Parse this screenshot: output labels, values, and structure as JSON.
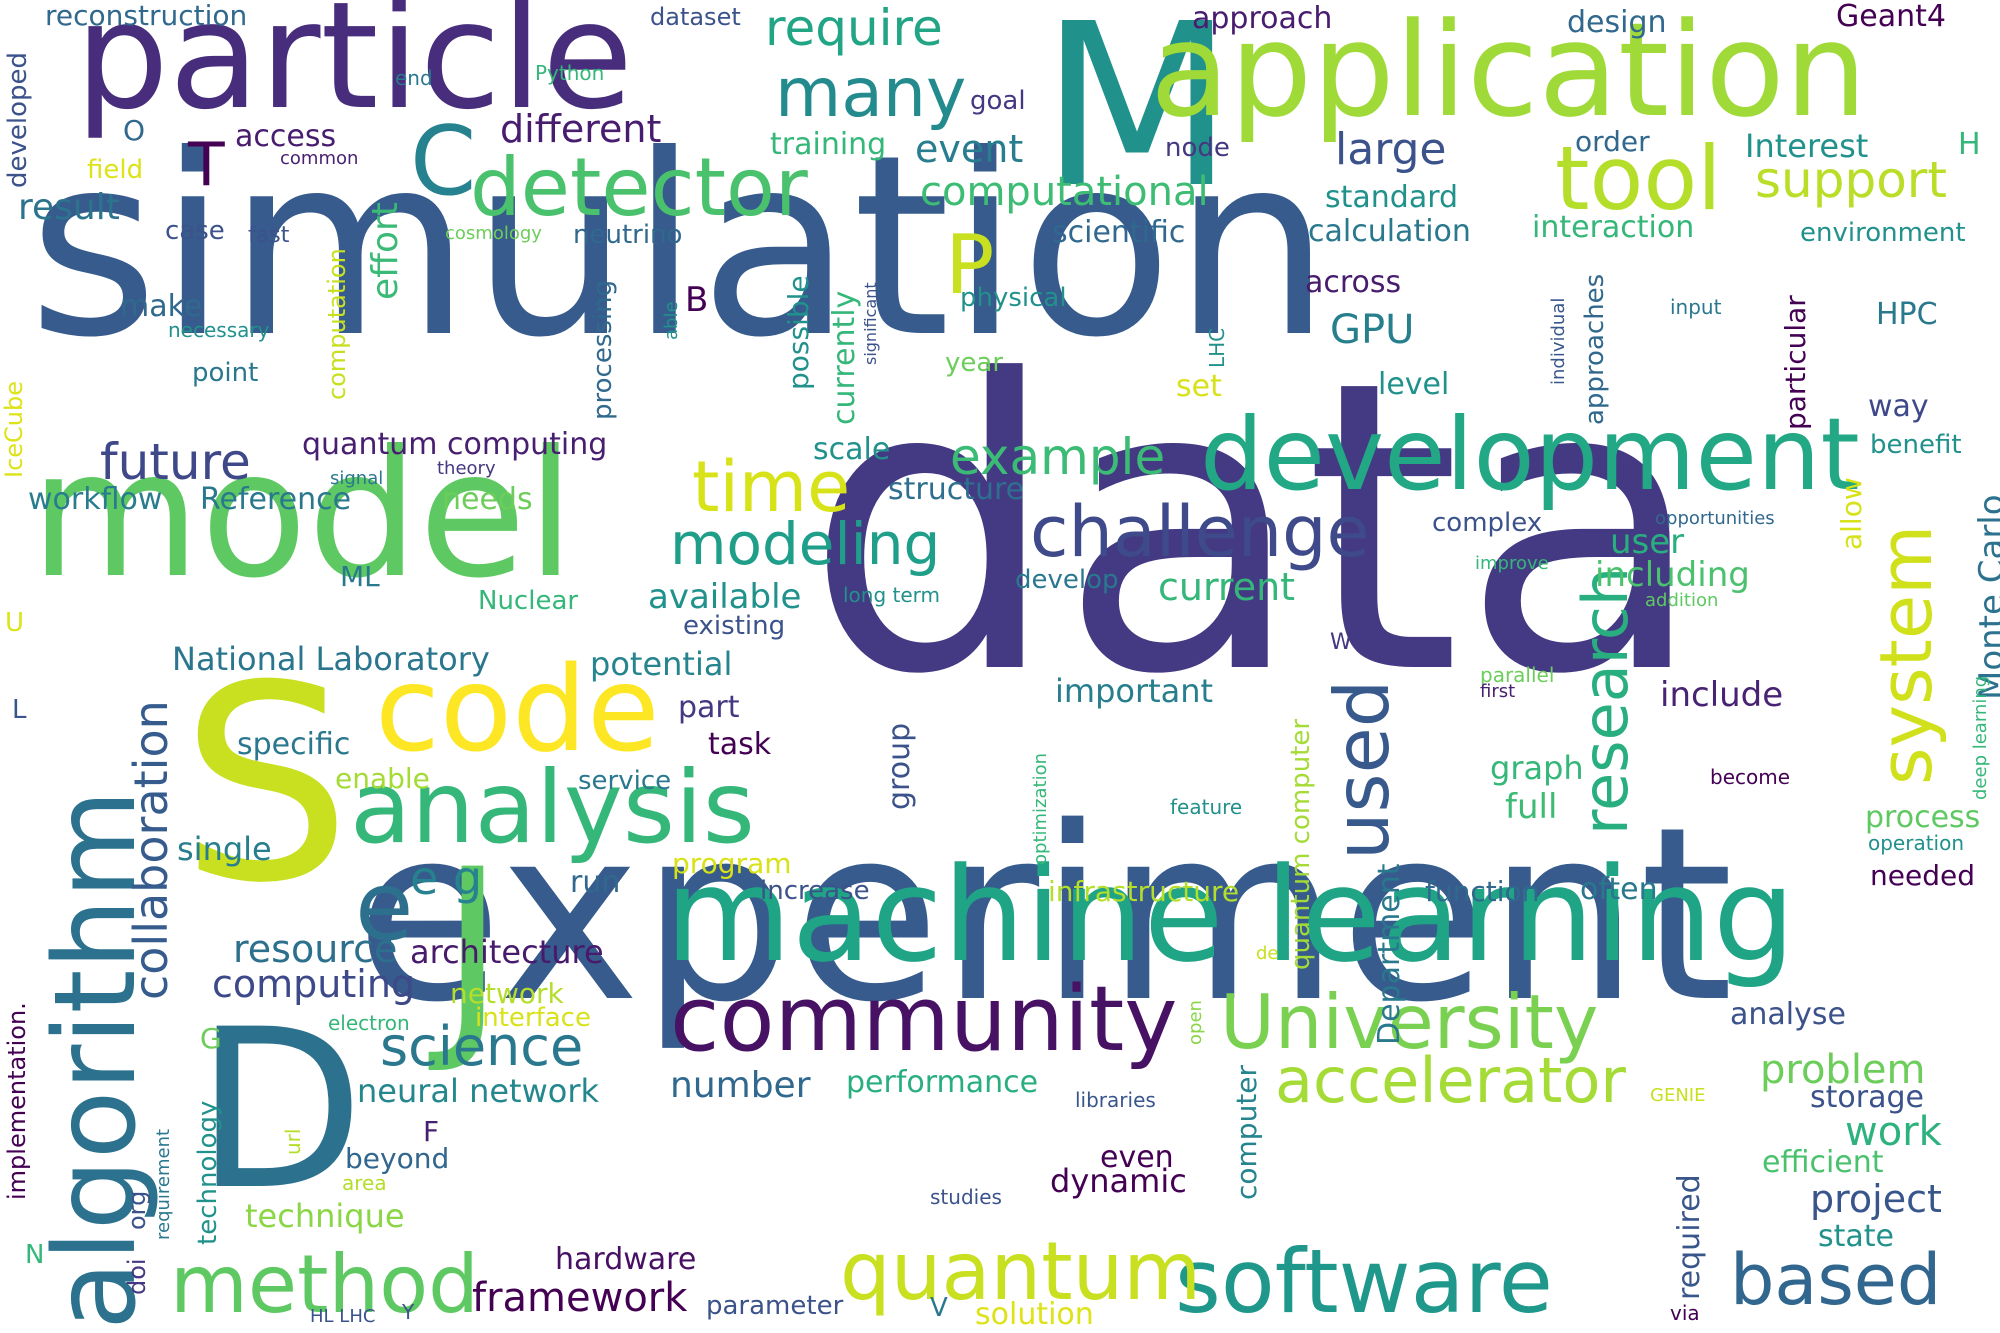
{
  "cloud": {
    "words": [
      {
        "text": "simulation",
        "color": "#365b8c"
      },
      {
        "text": "data",
        "color": "#443983"
      },
      {
        "text": "experiment",
        "color": "#365b8c"
      },
      {
        "text": "model",
        "color": "#5ec962"
      },
      {
        "text": "particle",
        "color": "#472d7b"
      },
      {
        "text": "M",
        "color": "#21918c"
      },
      {
        "text": "application",
        "color": "#a0da39"
      },
      {
        "text": "machine learning",
        "color": "#20a486"
      },
      {
        "text": "development",
        "color": "#22a884"
      },
      {
        "text": "D",
        "color": "#2c728e"
      },
      {
        "text": "S",
        "color": "#c8e020"
      },
      {
        "text": "J",
        "color": "#5ec962"
      },
      {
        "text": "algorithm",
        "color": "#2c728e"
      },
      {
        "text": "code",
        "color": "#fde725"
      },
      {
        "text": "analysis",
        "color": "#35b779"
      },
      {
        "text": "detector",
        "color": "#4ac16d"
      },
      {
        "text": "community",
        "color": "#471164"
      },
      {
        "text": "software",
        "color": "#1f988b"
      },
      {
        "text": "University",
        "color": "#7ad151"
      },
      {
        "text": "accelerator",
        "color": "#a5db36"
      },
      {
        "text": "quantum",
        "color": "#c8e020"
      },
      {
        "text": "method",
        "color": "#5ec962"
      },
      {
        "text": "tool",
        "color": "#b5de2b"
      },
      {
        "text": "system",
        "color": "#d0e11c"
      },
      {
        "text": "research",
        "color": "#29af7f"
      },
      {
        "text": "used",
        "color": "#38598c"
      },
      {
        "text": "challenge",
        "color": "#3e4a89"
      },
      {
        "text": "time",
        "color": "#d8e219"
      },
      {
        "text": "many",
        "color": "#238a8d"
      },
      {
        "text": "P",
        "color": "#c8e020"
      },
      {
        "text": "C",
        "color": "#26828e"
      },
      {
        "text": "T",
        "color": "#440154"
      },
      {
        "text": "e",
        "color": "#2d708e"
      },
      {
        "text": "based",
        "color": "#31668e"
      },
      {
        "text": "modeling",
        "color": "#1f9e89"
      },
      {
        "text": "collaboration",
        "color": "#365c8d"
      },
      {
        "text": "science",
        "color": "#2a788e"
      },
      {
        "text": "example",
        "color": "#3bbb75"
      },
      {
        "text": "require",
        "color": "#21a585"
      },
      {
        "text": "support",
        "color": "#bade28"
      },
      {
        "text": "computational",
        "color": "#3dbc74"
      },
      {
        "text": "future",
        "color": "#3f4889"
      },
      {
        "text": "framework",
        "color": "#440154"
      },
      {
        "text": "Monte Carlo",
        "color": "#2c728e"
      },
      {
        "text": "e g",
        "color": "#26828e"
      },
      {
        "text": "different",
        "color": "#481c6e"
      },
      {
        "text": "large",
        "color": "#3b528b"
      },
      {
        "text": "resource",
        "color": "#2d708e"
      },
      {
        "text": "computing",
        "color": "#3e4989"
      },
      {
        "text": "problem",
        "color": "#6ccd5a"
      },
      {
        "text": "project",
        "color": "#39568c"
      },
      {
        "text": "number",
        "color": "#31688e"
      },
      {
        "text": "current",
        "color": "#35b779"
      },
      {
        "text": "GPU",
        "color": "#277f8e"
      },
      {
        "text": "result",
        "color": "#2c738e"
      },
      {
        "text": "architecture",
        "color": "#481a6c"
      },
      {
        "text": "effort",
        "color": "#3aba76"
      },
      {
        "text": "work",
        "color": "#2db27d"
      },
      {
        "text": "National Laboratory",
        "color": "#2a768e"
      },
      {
        "text": "potential",
        "color": "#25848e"
      },
      {
        "text": "neural network",
        "color": "#24878e"
      },
      {
        "text": "performance",
        "color": "#29af7f"
      },
      {
        "text": "available",
        "color": "#21918c"
      },
      {
        "text": "event",
        "color": "#287d8e"
      },
      {
        "text": "include",
        "color": "#482374"
      },
      {
        "text": "graph",
        "color": "#35b779"
      },
      {
        "text": "full",
        "color": "#3bbb75"
      },
      {
        "text": "user",
        "color": "#29af7f"
      },
      {
        "text": "including",
        "color": "#4ac16d"
      },
      {
        "text": "analyse",
        "color": "#3b528b"
      },
      {
        "text": "important",
        "color": "#277f8e"
      },
      {
        "text": "quantum computing",
        "color": "#481f70"
      },
      {
        "text": "workflow",
        "color": "#287c8e"
      },
      {
        "text": "Reference",
        "color": "#2a788e"
      },
      {
        "text": "needs",
        "color": "#6ccd5a"
      },
      {
        "text": "structure",
        "color": "#2e6e8e"
      },
      {
        "text": "scale",
        "color": "#21918c"
      },
      {
        "text": "hardware",
        "color": "#471063"
      },
      {
        "text": "solution",
        "color": "#dde318"
      },
      {
        "text": "parameter",
        "color": "#3b528b"
      },
      {
        "text": "technique",
        "color": "#8bd646"
      },
      {
        "text": "beyond",
        "color": "#31668e"
      },
      {
        "text": "dynamic",
        "color": "#440154"
      },
      {
        "text": "even",
        "color": "#440154"
      },
      {
        "text": "efficient",
        "color": "#4ac16d"
      },
      {
        "text": "state",
        "color": "#21918c"
      },
      {
        "text": "storage",
        "color": "#3b528b"
      },
      {
        "text": "required",
        "color": "#39568c"
      },
      {
        "text": "computer",
        "color": "#25848e"
      },
      {
        "text": "Department",
        "color": "#2a788e"
      },
      {
        "text": "quantum computer",
        "color": "#a5db36"
      },
      {
        "text": "group",
        "color": "#3b528b"
      },
      {
        "text": "part",
        "color": "#453781"
      },
      {
        "text": "task",
        "color": "#440154"
      },
      {
        "text": "specific",
        "color": "#2a788e"
      },
      {
        "text": "enable",
        "color": "#a5db36"
      },
      {
        "text": "service",
        "color": "#2a788e"
      },
      {
        "text": "program",
        "color": "#d8e219"
      },
      {
        "text": "single",
        "color": "#277f8e"
      },
      {
        "text": "run",
        "color": "#31688e"
      },
      {
        "text": "increase",
        "color": "#3b528b"
      },
      {
        "text": "infrastructure",
        "color": "#b5de2b"
      },
      {
        "text": "function",
        "color": "#30688e"
      },
      {
        "text": "often",
        "color": "#2a788e"
      },
      {
        "text": "needed",
        "color": "#440154"
      },
      {
        "text": "process",
        "color": "#5ec962"
      },
      {
        "text": "operation",
        "color": "#21918c"
      },
      {
        "text": "network",
        "color": "#b5de2b"
      },
      {
        "text": "interface",
        "color": "#d8e219"
      },
      {
        "text": "electron",
        "color": "#35b779"
      },
      {
        "text": "libraries",
        "color": "#39568c"
      },
      {
        "text": "GENIE",
        "color": "#c8e020"
      },
      {
        "text": "studies",
        "color": "#3b528b"
      },
      {
        "text": "area",
        "color": "#b5de2b"
      },
      {
        "text": "url",
        "color": "#b5de2b"
      },
      {
        "text": "org",
        "color": "#3b528b"
      },
      {
        "text": "doi",
        "color": "#453781"
      },
      {
        "text": "requirement",
        "color": "#2a788e"
      },
      {
        "text": "technology",
        "color": "#21918c"
      },
      {
        "text": "implementation.",
        "color": "#440154"
      },
      {
        "text": "HL LHC",
        "color": "#3b528b"
      },
      {
        "text": "Y",
        "color": "#3b528b"
      },
      {
        "text": "V",
        "color": "#2a788e"
      },
      {
        "text": "via",
        "color": "#440154"
      },
      {
        "text": "N",
        "color": "#35b779"
      },
      {
        "text": "F",
        "color": "#481f70"
      },
      {
        "text": "G",
        "color": "#6ccd5a"
      },
      {
        "text": "U",
        "color": "#dde318"
      },
      {
        "text": "L",
        "color": "#39568c"
      },
      {
        "text": "W",
        "color": "#453781"
      },
      {
        "text": "ML",
        "color": "#2a788e"
      },
      {
        "text": "Nuclear",
        "color": "#35b779"
      },
      {
        "text": "existing",
        "color": "#3b528b"
      },
      {
        "text": "develop",
        "color": "#2a788e"
      },
      {
        "text": "long term",
        "color": "#21918c"
      },
      {
        "text": "addition",
        "color": "#5ec962"
      },
      {
        "text": "improve",
        "color": "#35b779"
      },
      {
        "text": "opportunities",
        "color": "#31688e"
      },
      {
        "text": "allow",
        "color": "#d8e219"
      },
      {
        "text": "complex",
        "color": "#3b528b"
      },
      {
        "text": "way",
        "color": "#3e4989"
      },
      {
        "text": "benefit",
        "color": "#21918c"
      },
      {
        "text": "HPC",
        "color": "#2a788e"
      },
      {
        "text": "particular",
        "color": "#440154"
      },
      {
        "text": "approaches",
        "color": "#31688e"
      },
      {
        "text": "individual",
        "color": "#39568c"
      },
      {
        "text": "input",
        "color": "#2a788e"
      },
      {
        "text": "level",
        "color": "#21918c"
      },
      {
        "text": "set",
        "color": "#d8e219"
      },
      {
        "text": "LHC",
        "color": "#21918c"
      },
      {
        "text": "across",
        "color": "#481c6e"
      },
      {
        "text": "physical",
        "color": "#21918c"
      },
      {
        "text": "year",
        "color": "#6ccd5a"
      },
      {
        "text": "significant",
        "color": "#3b528b"
      },
      {
        "text": "currently",
        "color": "#35b779"
      },
      {
        "text": "possible",
        "color": "#21918c"
      },
      {
        "text": "able",
        "color": "#21918c"
      },
      {
        "text": "processing",
        "color": "#31688e"
      },
      {
        "text": "B",
        "color": "#440154"
      },
      {
        "text": "computation",
        "color": "#c8e020"
      },
      {
        "text": "scientific",
        "color": "#31688e"
      },
      {
        "text": "neutrino",
        "color": "#31688e"
      },
      {
        "text": "cosmology",
        "color": "#6ccd5a"
      },
      {
        "text": "fast",
        "color": "#3b528b"
      },
      {
        "text": "case",
        "color": "#3b528b"
      },
      {
        "text": "make",
        "color": "#31688e"
      },
      {
        "text": "necessary",
        "color": "#21918c"
      },
      {
        "text": "point",
        "color": "#2a788e"
      },
      {
        "text": "theory",
        "color": "#453781"
      },
      {
        "text": "signal",
        "color": "#2a788e"
      },
      {
        "text": "IceCube",
        "color": "#dde318"
      },
      {
        "text": "field",
        "color": "#dde318"
      },
      {
        "text": "common",
        "color": "#481f70"
      },
      {
        "text": "access",
        "color": "#481c6e"
      },
      {
        "text": "O",
        "color": "#31688e"
      },
      {
        "text": "developed",
        "color": "#3b528b"
      },
      {
        "text": "reconstruction",
        "color": "#31688e"
      },
      {
        "text": "end",
        "color": "#2a788e"
      },
      {
        "text": "Python",
        "color": "#35b779"
      },
      {
        "text": "dataset",
        "color": "#3b528b"
      },
      {
        "text": "goal",
        "color": "#453781"
      },
      {
        "text": "training",
        "color": "#35b779"
      },
      {
        "text": "approach",
        "color": "#481c6e"
      },
      {
        "text": "design",
        "color": "#31688e"
      },
      {
        "text": "Geant4",
        "color": "#440154"
      },
      {
        "text": "order",
        "color": "#31688e"
      },
      {
        "text": "Interest",
        "color": "#21918c"
      },
      {
        "text": "H",
        "color": "#35b779"
      },
      {
        "text": "node",
        "color": "#453781"
      },
      {
        "text": "standard",
        "color": "#21918c"
      },
      {
        "text": "calculation",
        "color": "#2a788e"
      },
      {
        "text": "interaction",
        "color": "#35b779"
      },
      {
        "text": "environment",
        "color": "#21918c"
      },
      {
        "text": "optimization",
        "color": "#35b779"
      },
      {
        "text": "feature",
        "color": "#21918c"
      },
      {
        "text": "become",
        "color": "#440154"
      },
      {
        "text": "deep learning",
        "color": "#35b779"
      },
      {
        "text": "parallel",
        "color": "#6ccd5a"
      },
      {
        "text": "first",
        "color": "#481f70"
      },
      {
        "text": "de",
        "color": "#c8e020"
      },
      {
        "text": "open",
        "color": "#8bd646"
      }
    ]
  }
}
